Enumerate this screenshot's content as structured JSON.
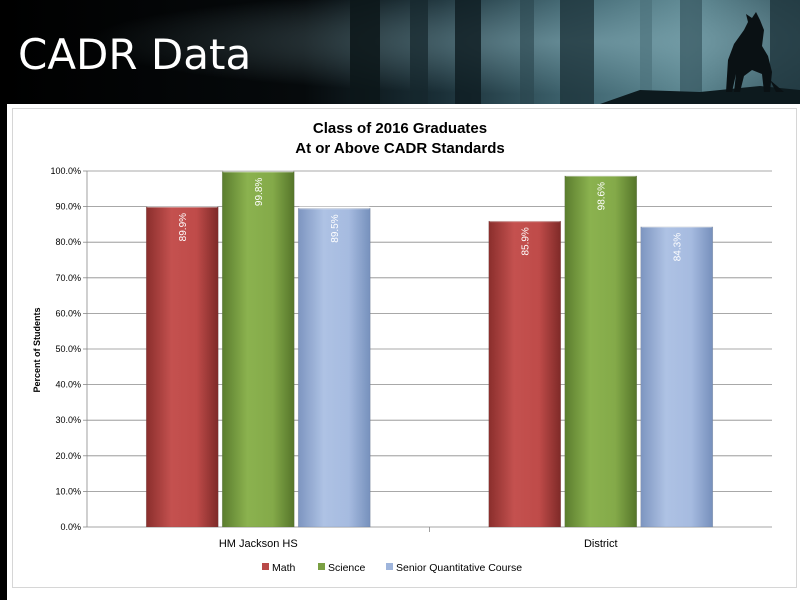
{
  "slide": {
    "title": "CADR Data"
  },
  "colors": {
    "math": "#b94a48",
    "science": "#7aa043",
    "senior": "#9fb5dc"
  },
  "chart_data": {
    "type": "bar",
    "title": "Class of 2016 Graduates\nAt or Above CADR Standards",
    "title_lines": [
      "Class of 2016 Graduates",
      "At or Above CADR Standards"
    ],
    "categories": [
      "HM Jackson HS",
      "District"
    ],
    "series": [
      {
        "name": "Math",
        "values": [
          89.9,
          85.9
        ],
        "labels": [
          "89.9%",
          "85.9%"
        ]
      },
      {
        "name": "Science",
        "values": [
          99.8,
          98.6
        ],
        "labels": [
          "99.8%",
          "98.6%"
        ]
      },
      {
        "name": "Senior Quantitative Course",
        "values": [
          89.5,
          84.3
        ],
        "labels": [
          "89.5%",
          "84.3%"
        ]
      }
    ],
    "xlabel": "",
    "ylabel": "Percent of Students",
    "ylim": [
      0,
      100
    ],
    "yticks": [
      "0.0%",
      "10.0%",
      "20.0%",
      "30.0%",
      "40.0%",
      "50.0%",
      "60.0%",
      "70.0%",
      "80.0%",
      "90.0%",
      "100.0%"
    ],
    "grid": true,
    "legend": "bottom"
  }
}
